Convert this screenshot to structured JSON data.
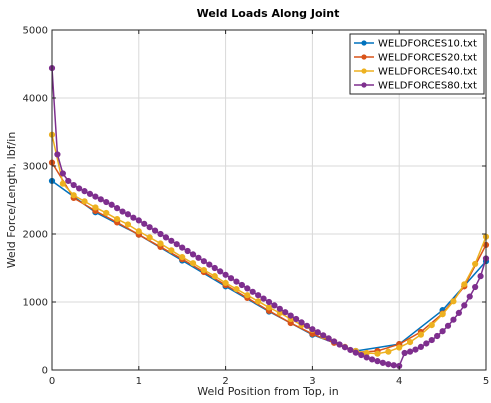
{
  "chart_data": {
    "type": "line",
    "title": "Weld Loads Along Joint",
    "xlabel": "Weld Position from Top, in",
    "ylabel": "Weld Force/Length, lbf/in",
    "xlim": [
      0,
      5
    ],
    "ylim": [
      0,
      5000
    ],
    "xticks": [
      "0",
      "1",
      "2",
      "3",
      "4",
      "5"
    ],
    "yticks": [
      "0",
      "1000",
      "2000",
      "3000",
      "4000",
      "5000"
    ],
    "grid": true,
    "legend_position": "top-right",
    "series": [
      {
        "name": "WELDFORCES10.txt",
        "color": "#0072BD",
        "x": [
          0,
          0.5,
          1,
          1.5,
          2,
          2.5,
          3,
          3.5,
          4,
          4.5,
          5
        ],
        "y": [
          2780,
          2320,
          1990,
          1610,
          1230,
          860,
          520,
          280,
          380,
          880,
          1600
        ]
      },
      {
        "name": "WELDFORCES20.txt",
        "color": "#D95319",
        "x": [
          0,
          0.25,
          0.5,
          0.75,
          1,
          1.25,
          1.5,
          1.75,
          2,
          2.25,
          2.5,
          2.75,
          3,
          3.25,
          3.5,
          3.75,
          4,
          4.25,
          4.5,
          4.75,
          5
        ],
        "y": [
          3050,
          2530,
          2340,
          2170,
          1990,
          1810,
          1630,
          1440,
          1250,
          1060,
          870,
          690,
          530,
          400,
          260,
          280,
          380,
          560,
          830,
          1230,
          1840
        ]
      },
      {
        "name": "WELDFORCES40.txt",
        "color": "#EDB120",
        "x": [
          0,
          0.125,
          0.25,
          0.375,
          0.5,
          0.625,
          0.75,
          0.875,
          1,
          1.125,
          1.25,
          1.375,
          1.5,
          1.625,
          1.75,
          1.875,
          2,
          2.125,
          2.25,
          2.375,
          2.5,
          2.625,
          2.75,
          2.875,
          3,
          3.125,
          3.25,
          3.375,
          3.5,
          3.625,
          3.75,
          3.875,
          4,
          4.125,
          4.25,
          4.375,
          4.5,
          4.625,
          4.75,
          4.875,
          5
        ],
        "y": [
          3460,
          2740,
          2570,
          2480,
          2390,
          2310,
          2220,
          2140,
          2040,
          1950,
          1860,
          1760,
          1660,
          1570,
          1470,
          1380,
          1280,
          1190,
          1100,
          1010,
          920,
          840,
          750,
          660,
          590,
          500,
          420,
          340,
          280,
          250,
          240,
          270,
          330,
          410,
          520,
          660,
          820,
          1010,
          1260,
          1560,
          1960
        ]
      },
      {
        "name": "WELDFORCES80.txt",
        "color": "#7E2F8E",
        "x": [
          0,
          0.0625,
          0.125,
          0.1875,
          0.25,
          0.3125,
          0.375,
          0.4375,
          0.5,
          0.5625,
          0.625,
          0.6875,
          0.75,
          0.8125,
          0.875,
          0.9375,
          1,
          1.0625,
          1.125,
          1.1875,
          1.25,
          1.3125,
          1.375,
          1.4375,
          1.5,
          1.5625,
          1.625,
          1.6875,
          1.75,
          1.8125,
          1.875,
          1.9375,
          2,
          2.0625,
          2.125,
          2.1875,
          2.25,
          2.3125,
          2.375,
          2.4375,
          2.5,
          2.5625,
          2.625,
          2.6875,
          2.75,
          2.8125,
          2.875,
          2.9375,
          3,
          3.0625,
          3.125,
          3.1875,
          3.25,
          3.3125,
          3.375,
          3.4375,
          3.5,
          3.5625,
          3.625,
          3.6875,
          3.75,
          3.8125,
          3.875,
          3.9375,
          4,
          4.0625,
          4.125,
          4.1875,
          4.25,
          4.3125,
          4.375,
          4.4375,
          4.5,
          4.5625,
          4.625,
          4.6875,
          4.75,
          4.8125,
          4.875,
          4.9375,
          5
        ],
        "y": [
          4440,
          3170,
          2890,
          2780,
          2720,
          2670,
          2630,
          2590,
          2550,
          2510,
          2470,
          2430,
          2380,
          2330,
          2290,
          2240,
          2200,
          2150,
          2100,
          2050,
          2000,
          1950,
          1900,
          1850,
          1800,
          1750,
          1700,
          1650,
          1600,
          1550,
          1500,
          1450,
          1400,
          1350,
          1300,
          1250,
          1200,
          1150,
          1100,
          1050,
          1000,
          950,
          900,
          850,
          800,
          750,
          700,
          650,
          600,
          555,
          510,
          465,
          420,
          375,
          335,
          295,
          255,
          220,
          185,
          155,
          130,
          105,
          85,
          70,
          60,
          250,
          270,
          300,
          340,
          390,
          440,
          500,
          570,
          650,
          740,
          840,
          950,
          1080,
          1220,
          1380,
          1640
        ]
      }
    ]
  }
}
